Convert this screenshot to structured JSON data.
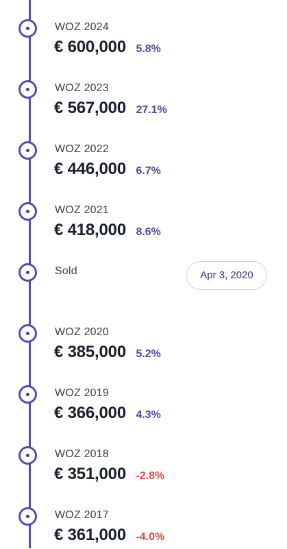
{
  "timeline": {
    "accent_color": "#5a4ba6",
    "positive_color": "#54479b",
    "negative_color": "#e04a4a",
    "entries": [
      {
        "label": "WOZ 2024",
        "value": "€ 600,000",
        "change": "5.8%",
        "trend": "up"
      },
      {
        "label": "WOZ 2023",
        "value": "€ 567,000",
        "change": "27.1%",
        "trend": "up"
      },
      {
        "label": "WOZ 2022",
        "value": "€ 446,000",
        "change": "6.7%",
        "trend": "up"
      },
      {
        "label": "WOZ 2021",
        "value": "€ 418,000",
        "change": "8.6%",
        "trend": "up"
      },
      {
        "label": "Sold",
        "date": "Apr 3, 2020"
      },
      {
        "label": "WOZ 2020",
        "value": "€ 385,000",
        "change": "5.2%",
        "trend": "up"
      },
      {
        "label": "WOZ 2019",
        "value": "€ 366,000",
        "change": "4.3%",
        "trend": "up"
      },
      {
        "label": "WOZ 2018",
        "value": "€ 351,000",
        "change": "-2.8%",
        "trend": "down"
      },
      {
        "label": "WOZ 2017",
        "value": "€ 361,000",
        "change": "-4.0%",
        "trend": "down"
      }
    ]
  }
}
